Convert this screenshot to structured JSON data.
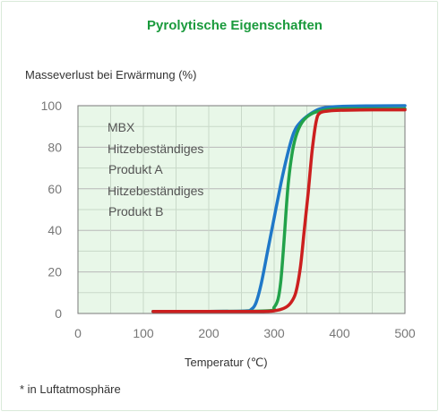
{
  "chart_data": {
    "type": "line",
    "title": "Pyrolytische Eigenschaften",
    "ylabel": "Masseverlust bei Erwärmung (%)",
    "xlabel": "Temperatur (℃)",
    "footnote": "* in Luftatmosphäre",
    "xlim": [
      0,
      500
    ],
    "ylim": [
      0,
      100
    ],
    "xticks": [
      0,
      100,
      200,
      300,
      400,
      500
    ],
    "yticks": [
      0,
      20,
      40,
      60,
      80,
      100
    ],
    "grid": true,
    "legend_lines": [
      "MBX",
      "Hitzebeständiges",
      "Produkt A",
      "Hitzebeständiges",
      "Produkt B"
    ],
    "series": [
      {
        "name": "MBX",
        "color": "#1f78c8",
        "x": [
          115,
          200,
          255,
          265,
          272,
          280,
          290,
          300,
          310,
          320,
          330,
          340,
          355,
          370,
          390,
          420,
          450,
          500
        ],
        "y": [
          1,
          1,
          1.2,
          2,
          5,
          14,
          30,
          46,
          62,
          76,
          87,
          92,
          96,
          98.5,
          99.5,
          99.8,
          99.9,
          100
        ]
      },
      {
        "name": "Hitzebeständiges Produkt A",
        "color": "#22a24a",
        "x": [
          115,
          200,
          290,
          300,
          306,
          310,
          314,
          318,
          322,
          328,
          335,
          345,
          360,
          380,
          400,
          450,
          500
        ],
        "y": [
          1,
          1,
          1.3,
          3,
          7,
          15,
          30,
          48,
          64,
          78,
          87,
          93,
          96.5,
          98,
          98.5,
          98.5,
          98.5
        ]
      },
      {
        "name": "Hitzebeständiges Produkt B",
        "color": "#cc1f1f",
        "x": [
          115,
          200,
          280,
          300,
          315,
          325,
          333,
          340,
          346,
          352,
          358,
          364,
          370,
          385,
          400,
          450,
          500
        ],
        "y": [
          1,
          1,
          1,
          1.3,
          2.5,
          5,
          10,
          22,
          40,
          58,
          78,
          92,
          96.5,
          97.5,
          97.8,
          98,
          98
        ]
      }
    ]
  }
}
